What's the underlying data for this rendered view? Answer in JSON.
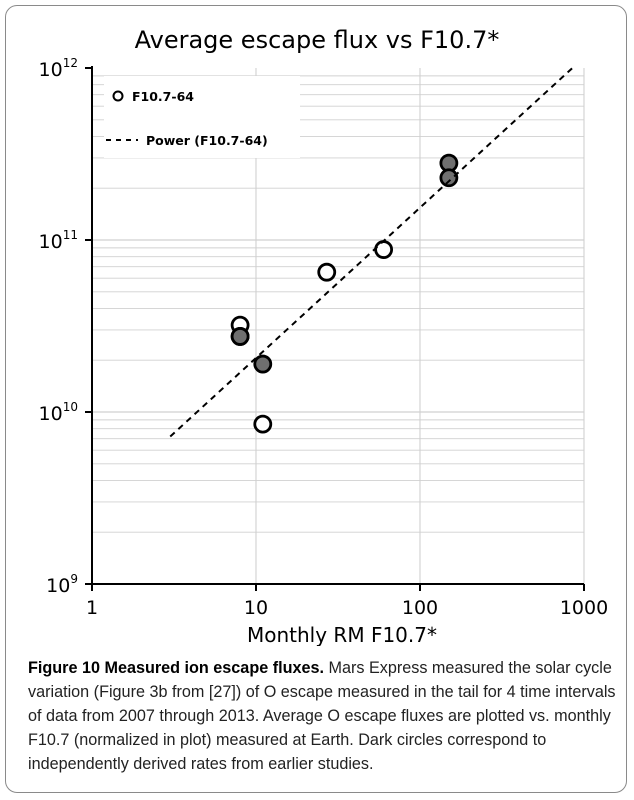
{
  "chart_data": {
    "type": "scatter",
    "title": "Average escape flux vs F10.7*",
    "xlabel": "Monthly RM F10.7*",
    "ylabel": "",
    "xscale": "log",
    "yscale": "log",
    "xlim": [
      1,
      1000
    ],
    "ylim": [
      1000000000.0,
      1000000000000.0
    ],
    "x_ticks": [
      {
        "value": 1,
        "label": "1"
      },
      {
        "value": 10,
        "label": "10"
      },
      {
        "value": 100,
        "label": "100"
      },
      {
        "value": 1000,
        "label": "1000"
      }
    ],
    "y_ticks": [
      {
        "value": 1000000000.0,
        "base": "10",
        "exp": "9"
      },
      {
        "value": 10000000000.0,
        "base": "10",
        "exp": "10"
      },
      {
        "value": 100000000000.0,
        "base": "10",
        "exp": "11"
      },
      {
        "value": 1000000000000.0,
        "base": "10",
        "exp": "12"
      }
    ],
    "grid": true,
    "legend_position": "top-left",
    "legend": [
      {
        "label": "F10.7-64",
        "marker": "open-circle"
      },
      {
        "label": "Power (F10.7-64)",
        "marker": "dashed-line"
      }
    ],
    "series": [
      {
        "name": "F10.7-64",
        "marker": "open-circle",
        "points": [
          {
            "x": 8,
            "y": 32000000000.0
          },
          {
            "x": 8,
            "y": 27500000000.0
          },
          {
            "x": 11,
            "y": 8500000000.0
          },
          {
            "x": 27,
            "y": 65000000000.0
          },
          {
            "x": 60,
            "y": 88000000000.0
          }
        ]
      },
      {
        "name": "",
        "marker": "filled-circle",
        "points": [
          {
            "x": 8,
            "y": 27500000000.0
          },
          {
            "x": 11,
            "y": 19000000000.0
          },
          {
            "x": 150,
            "y": 280000000000.0
          },
          {
            "x": 150,
            "y": 230000000000.0
          }
        ]
      },
      {
        "name": "Power (F10.7-64)",
        "style": "dashed-line",
        "points": [
          {
            "x": 3,
            "y": 7200000000.0
          },
          {
            "x": 850,
            "y": 1000000000000.0
          }
        ]
      }
    ]
  },
  "colors": {
    "filled_marker": "#6f6f6f",
    "grid": "#d0d0d0",
    "frame_border": "#8a8a8a"
  },
  "caption": {
    "bold": "Figure 10 Measured ion escape fluxes.",
    "text": " Mars Express measured the solar cycle variation (Figure 3b from [27]) of O escape measured in the tail for 4 time intervals of data from 2007 through 2013. Average O escape fluxes are plotted vs. monthly F10.7 (normalized in plot) measured at Earth. Dark circles correspond to independently derived rates from earlier studies."
  }
}
